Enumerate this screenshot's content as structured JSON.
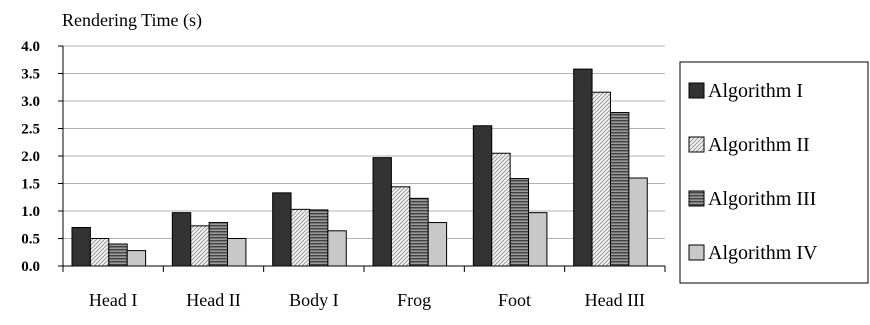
{
  "chart_data": {
    "type": "bar",
    "title": "",
    "ylabel": "Rendering Time (s)",
    "xlabel": "",
    "ylim": [
      0,
      4.0
    ],
    "yticks": [
      "0.0",
      "0.5",
      "1.0",
      "1.5",
      "2.0",
      "2.5",
      "3.0",
      "3.5",
      "4.0"
    ],
    "grid": "horizontal",
    "legend_position": "right",
    "categories": [
      "Head I",
      "Head II",
      "Body I",
      "Frog",
      "Foot",
      "Head III"
    ],
    "series": [
      {
        "name": "Algorithm I",
        "values": [
          0.7,
          0.97,
          1.33,
          1.97,
          2.55,
          3.58
        ],
        "color": "#333333",
        "pattern": "solid"
      },
      {
        "name": "Algorithm II",
        "values": [
          0.5,
          0.73,
          1.03,
          1.44,
          2.05,
          3.16
        ],
        "color": "#f2f2f2",
        "pattern": "diagonal"
      },
      {
        "name": "Algorithm III",
        "values": [
          0.4,
          0.79,
          1.02,
          1.23,
          1.59,
          2.79
        ],
        "color": "#666666",
        "pattern": "horizontal"
      },
      {
        "name": "Algorithm IV",
        "values": [
          0.28,
          0.5,
          0.64,
          0.79,
          0.97,
          1.6
        ],
        "color": "#c8c8c8",
        "pattern": "solid"
      }
    ]
  }
}
